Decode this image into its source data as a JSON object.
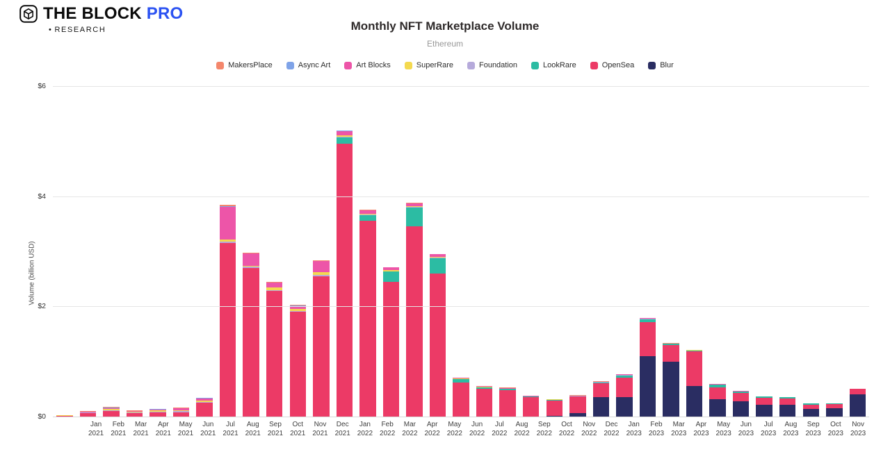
{
  "brand": {
    "name_primary": "THE BLOCK",
    "name_accent": "PRO",
    "bullet": "•",
    "sub": "RESEARCH",
    "accent_color": "#2b52f2"
  },
  "header": {
    "title": "Monthly NFT Marketplace Volume",
    "subtitle": "Ethereum"
  },
  "chart_data": {
    "type": "bar",
    "stacked": true,
    "title": "Monthly NFT Marketplace Volume",
    "subtitle": "Ethereum",
    "ylabel": "Volume (billion USD)",
    "ylim": [
      0,
      6
    ],
    "yticks": [
      0,
      2,
      4,
      6
    ],
    "ytick_labels": [
      "$0",
      "$2",
      "$4",
      "$6"
    ],
    "grid": true,
    "legend_position": "top",
    "categories": [
      "Jan 2021",
      "Feb 2021",
      "Mar 2021",
      "Apr 2021",
      "May 2021",
      "Jun 2021",
      "Jul 2021",
      "Aug 2021",
      "Sep 2021",
      "Oct 2021",
      "Nov 2021",
      "Dec 2021",
      "Jan 2022",
      "Feb 2022",
      "Mar 2022",
      "Apr 2022",
      "May 2022",
      "Jun 2022",
      "Jul 2022",
      "Aug 2022",
      "Sep 2022",
      "Oct 2022",
      "Nov 2022",
      "Dec 2022",
      "Jan 2023",
      "Feb 2023",
      "Mar 2023",
      "Apr 2023",
      "May 2023",
      "Jun 2023",
      "Jul 2023",
      "Aug 2023",
      "Sep 2023",
      "Oct 2023",
      "Nov 2023"
    ],
    "series": [
      {
        "name": "MakersPlace",
        "color": "#f4876c",
        "values": [
          0.005,
          0.01,
          0.02,
          0.01,
          0.01,
          0.01,
          0.01,
          0.02,
          0.01,
          0.01,
          0.01,
          0.01,
          0.01,
          0.01,
          0.005,
          0.005,
          0.005,
          0.005,
          0.005,
          0.005,
          0.005,
          0.005,
          0.005,
          0.005,
          0.005,
          0.005,
          0.005,
          0.005,
          0.005,
          0.002,
          0.002,
          0.002,
          0.002,
          0.002,
          0.002
        ]
      },
      {
        "name": "Async Art",
        "color": "#7fa3e8",
        "values": [
          0.002,
          0.005,
          0.01,
          0.005,
          0.005,
          0.005,
          0.005,
          0.01,
          0.005,
          0.005,
          0.005,
          0.005,
          0.005,
          0.003,
          0.002,
          0.002,
          0.002,
          0.002,
          0.002,
          0.002,
          0.002,
          0.002,
          0.002,
          0.002,
          0.002,
          0.002,
          0.002,
          0.002,
          0.002,
          0.001,
          0.001,
          0.001,
          0.001,
          0.001,
          0.001
        ]
      },
      {
        "name": "Art Blocks",
        "color": "#ed55a8",
        "values": [
          0.002,
          0.005,
          0.01,
          0.01,
          0.02,
          0.03,
          0.04,
          0.6,
          0.22,
          0.08,
          0.06,
          0.2,
          0.08,
          0.06,
          0.05,
          0.05,
          0.04,
          0.01,
          0.01,
          0.01,
          0.005,
          0.005,
          0.005,
          0.005,
          0.01,
          0.01,
          0.005,
          0.005,
          0.005,
          0.005,
          0.005,
          0.005,
          0.003,
          0.003,
          0.003
        ]
      },
      {
        "name": "SuperRare",
        "color": "#f4d94f",
        "values": [
          0.005,
          0.01,
          0.02,
          0.015,
          0.02,
          0.02,
          0.02,
          0.03,
          0.02,
          0.05,
          0.03,
          0.05,
          0.02,
          0.02,
          0.015,
          0.015,
          0.015,
          0.01,
          0.005,
          0.005,
          0.005,
          0.005,
          0.005,
          0.005,
          0.005,
          0.005,
          0.005,
          0.005,
          0.005,
          0.003,
          0.003,
          0.003,
          0.002,
          0.002,
          0.002
        ]
      },
      {
        "name": "Foundation",
        "color": "#b6aadb",
        "values": [
          0.002,
          0.01,
          0.02,
          0.015,
          0.02,
          0.02,
          0.02,
          0.03,
          0.02,
          0.02,
          0.02,
          0.02,
          0.015,
          0.015,
          0.01,
          0.01,
          0.01,
          0.005,
          0.005,
          0.005,
          0.005,
          0.005,
          0.005,
          0.005,
          0.005,
          0.005,
          0.003,
          0.003,
          0.003,
          0.002,
          0.002,
          0.002,
          0.002,
          0.002,
          0.002
        ]
      },
      {
        "name": "LookRare",
        "color": "#2cbca3",
        "values": [
          0,
          0,
          0,
          0,
          0,
          0,
          0,
          0,
          0,
          0,
          0,
          0,
          0.12,
          0.1,
          0.18,
          0.35,
          0.28,
          0.06,
          0.03,
          0.02,
          0.01,
          0.01,
          0.01,
          0.02,
          0.04,
          0.05,
          0.02,
          0.02,
          0.05,
          0.03,
          0.02,
          0.02,
          0.015,
          0.01,
          0.01
        ]
      },
      {
        "name": "OpenSea",
        "color": "#ec3a66",
        "values": [
          0.015,
          0.06,
          0.1,
          0.06,
          0.07,
          0.08,
          0.25,
          3.15,
          2.7,
          2.28,
          1.9,
          2.55,
          4.95,
          3.55,
          2.45,
          3.45,
          2.6,
          0.62,
          0.5,
          0.48,
          0.35,
          0.28,
          0.3,
          0.25,
          0.36,
          0.62,
          0.3,
          0.63,
          0.21,
          0.15,
          0.13,
          0.12,
          0.08,
          0.08,
          0.1
        ]
      },
      {
        "name": "Blur",
        "color": "#2a2d62",
        "values": [
          0,
          0,
          0,
          0,
          0,
          0,
          0,
          0,
          0,
          0,
          0,
          0,
          0,
          0,
          0,
          0,
          0,
          0,
          0,
          0,
          0,
          0.01,
          0.06,
          0.35,
          0.35,
          1.1,
          1.0,
          0.55,
          0.32,
          0.28,
          0.21,
          0.21,
          0.14,
          0.15,
          0.4
        ]
      }
    ]
  }
}
